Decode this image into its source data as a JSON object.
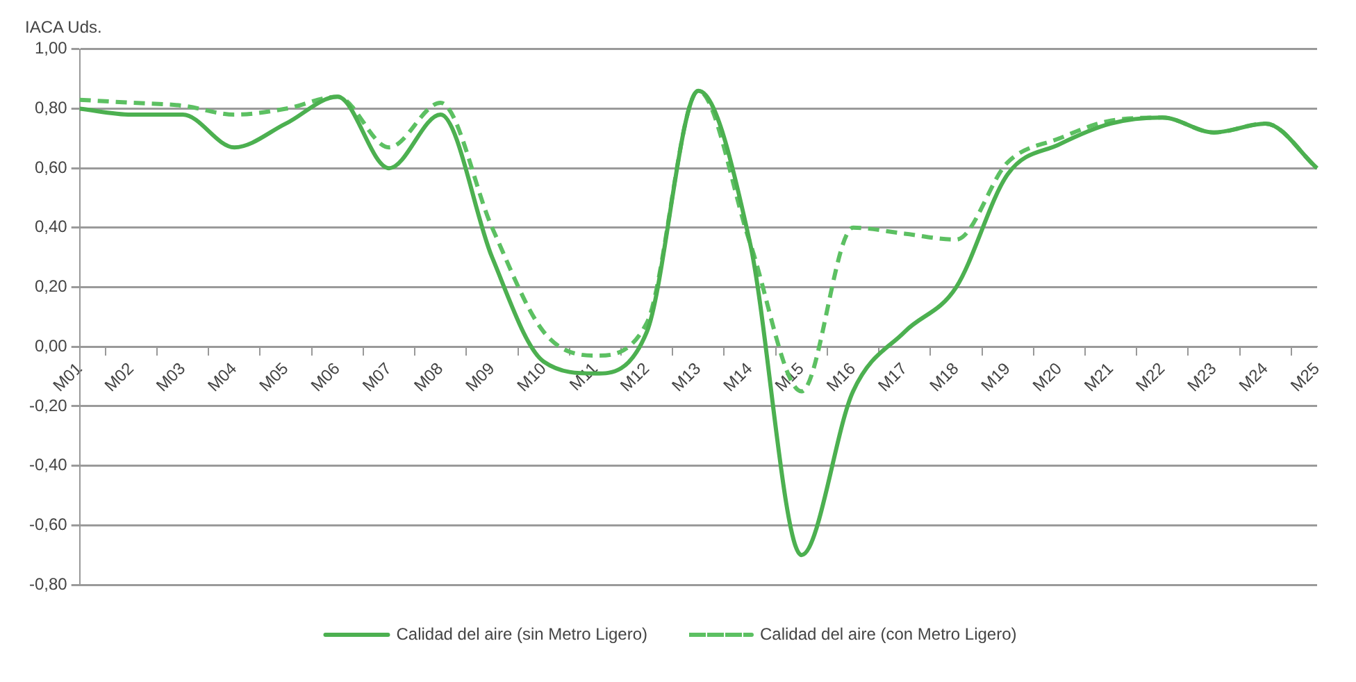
{
  "chart_data": {
    "type": "line",
    "ylabel": "IACA Uds.",
    "categories": [
      "M01",
      "M02",
      "M03",
      "M04",
      "M05",
      "M06",
      "M07",
      "M08",
      "M09",
      "M10",
      "M11",
      "M12",
      "M13",
      "M14",
      "M15",
      "M16",
      "M17",
      "M18",
      "M19",
      "M20",
      "M21",
      "M22",
      "M23",
      "M24",
      "M25"
    ],
    "series": [
      {
        "name": "Calidad del aire (sin Metro Ligero)",
        "color": "#4cb050",
        "line_style": "solid",
        "values": [
          0.8,
          0.78,
          0.78,
          0.67,
          0.75,
          0.84,
          0.6,
          0.78,
          0.3,
          -0.05,
          -0.09,
          0.05,
          0.86,
          0.35,
          -0.7,
          -0.15,
          0.05,
          0.2,
          0.58,
          0.68,
          0.75,
          0.77,
          0.72,
          0.75,
          0.6
        ]
      },
      {
        "name": "Calidad del aire (con Metro Ligero)",
        "color": "#5cc062",
        "line_style": "dashed",
        "values": [
          0.83,
          0.82,
          0.81,
          0.78,
          0.8,
          0.84,
          0.67,
          0.82,
          0.4,
          0.05,
          -0.03,
          0.08,
          0.86,
          0.35,
          -0.15,
          0.4,
          0.38,
          0.36,
          0.62,
          0.7,
          0.76,
          0.77,
          0.72,
          0.75,
          0.6
        ]
      }
    ],
    "ylim": [
      -0.8,
      1.0
    ],
    "yticks": [
      {
        "value": -0.8,
        "label": "-0,80"
      },
      {
        "value": -0.6,
        "label": "-0,60"
      },
      {
        "value": -0.4,
        "label": "-0,40"
      },
      {
        "value": -0.2,
        "label": "-0,20"
      },
      {
        "value": 0,
        "label": "0,00"
      },
      {
        "value": 0.2,
        "label": "0,20"
      },
      {
        "value": 0.4,
        "label": "0,40"
      },
      {
        "value": 0.6,
        "label": "0,60"
      },
      {
        "value": 0.8,
        "label": "0,80"
      },
      {
        "value": 1.0,
        "label": "1,00"
      }
    ],
    "grid": "y",
    "legend": "bottom",
    "marker": "none"
  }
}
